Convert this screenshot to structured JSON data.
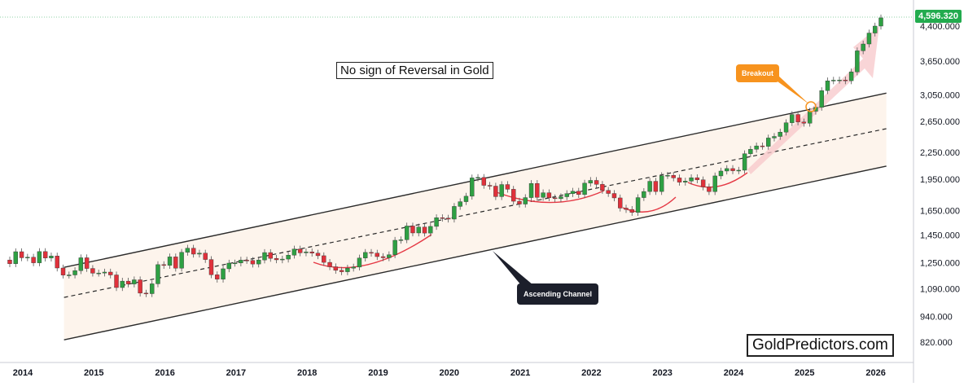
{
  "chart_data": {
    "type": "candlestick",
    "title": "No sign of Reversal in Gold",
    "watermark": "GoldPredictors.com",
    "scale": "log",
    "ylim": [
      750,
      4700
    ],
    "xlim": [
      2014.0,
      2026.6
    ],
    "y_ticks": [
      "4,400.000",
      "3,650.000",
      "3,050.000",
      "2,650.000",
      "2,250.000",
      "1,950.000",
      "1,650.000",
      "1,450.000",
      "1,250.000",
      "1,090.000",
      "940.000",
      "820.000"
    ],
    "y_tick_values": [
      4400,
      3650,
      3050,
      2650,
      2250,
      1950,
      1650,
      1450,
      1250,
      1090,
      940,
      820
    ],
    "x_ticks": [
      "2014",
      "2015",
      "2016",
      "2017",
      "2018",
      "2019",
      "2020",
      "2021",
      "2022",
      "2023",
      "2024",
      "2025",
      "2026"
    ],
    "x_tick_values": [
      2014,
      2015,
      2016,
      2017,
      2018,
      2019,
      2020,
      2021,
      2022,
      2023,
      2024,
      2025,
      2026
    ],
    "last_price": "4,596.320",
    "annotations": {
      "breakout": "Breakout",
      "channel": "Ascending Channel"
    },
    "channel": {
      "start_x": 2014.58,
      "end_x": 2026.15,
      "upper": [
        1220,
        3080
      ],
      "middle": [
        1040,
        2550
      ],
      "lower": [
        830,
        2090
      ]
    },
    "closes": [
      1244,
      1326,
      1284,
      1288,
      1250,
      1327,
      1282,
      1296,
      1216,
      1171,
      1172,
      1199,
      1284,
      1213,
      1183,
      1184,
      1190,
      1172,
      1096,
      1134,
      1117,
      1142,
      1064,
      1061,
      1118,
      1238,
      1233,
      1290,
      1215,
      1322,
      1351,
      1309,
      1316,
      1272,
      1173,
      1146,
      1211,
      1248,
      1249,
      1268,
      1266,
      1242,
      1269,
      1320,
      1280,
      1270,
      1275,
      1302,
      1345,
      1318,
      1325,
      1316,
      1298,
      1253,
      1224,
      1201,
      1192,
      1215,
      1222,
      1282,
      1321,
      1316,
      1292,
      1284,
      1305,
      1409,
      1413,
      1520,
      1465,
      1512,
      1464,
      1517,
      1589,
      1585,
      1577,
      1687,
      1730,
      1781,
      1963,
      1968,
      1887,
      1879,
      1777,
      1895,
      1848,
      1734,
      1708,
      1768,
      1906,
      1770,
      1814,
      1766,
      1758,
      1776,
      1806,
      1829,
      1797,
      1909,
      1937,
      1897,
      1837,
      1807,
      1765,
      1672,
      1660,
      1634,
      1768,
      1826,
      1928,
      1826,
      1987,
      1990,
      1963,
      1919,
      1930,
      1965,
      1943,
      1871,
      1825,
      1984,
      2036,
      2063,
      2039,
      2045,
      2232,
      2286,
      2327,
      2322,
      2427,
      2447,
      2504,
      2632,
      2750,
      2643,
      2625,
      2798,
      2857,
      3122,
      3289,
      3300,
      3303,
      3290,
      3448,
      3858,
      4000,
      4240,
      4400,
      4596
    ]
  }
}
